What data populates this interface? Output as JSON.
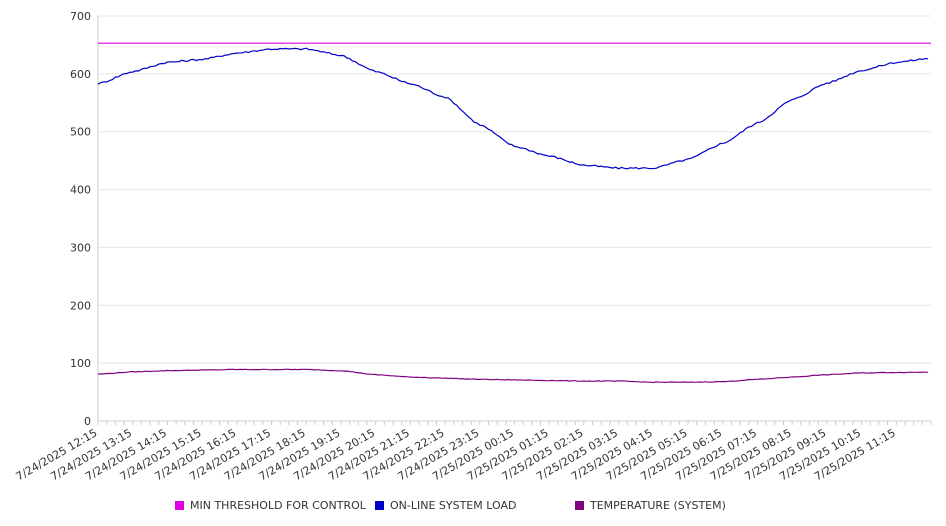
{
  "chart_data": {
    "type": "line",
    "title": "",
    "xlabel": "",
    "ylabel": "",
    "ylim": [
      0,
      700
    ],
    "yticks": [
      0,
      100,
      200,
      300,
      400,
      500,
      600,
      700
    ],
    "grid": true,
    "legend_position": "bottom",
    "categories": [
      "7/24/2025 12:15",
      "7/24/2025 13:15",
      "7/24/2025 14:15",
      "7/24/2025 15:15",
      "7/24/2025 16:15",
      "7/24/2025 17:15",
      "7/24/2025 18:15",
      "7/24/2025 19:15",
      "7/24/2025 20:15",
      "7/24/2025 21:15",
      "7/24/2025 22:15",
      "7/24/2025 23:15",
      "7/25/2025 00:15",
      "7/25/2025 01:15",
      "7/25/2025 02:15",
      "7/25/2025 03:15",
      "7/25/2025 04:15",
      "7/25/2025 05:15",
      "7/25/2025 06:15",
      "7/25/2025 07:15",
      "7/25/2025 08:15",
      "7/25/2025 09:15",
      "7/25/2025 10:15",
      "7/25/2025 11:15"
    ],
    "series": [
      {
        "name": "MIN THRESHOLD FOR CONTROL",
        "color": "#e000e0",
        "values": [
          653,
          653,
          653,
          653,
          653,
          653,
          653,
          653,
          653,
          653,
          653,
          653,
          653,
          653,
          653,
          653,
          653,
          653,
          653,
          653,
          653,
          653,
          653,
          653
        ]
      },
      {
        "name": "ON-LINE SYSTEM LOAD",
        "color": "#0000c8",
        "values": [
          583,
          604,
          620,
          625,
          636,
          643,
          643,
          632,
          604,
          583,
          560,
          512,
          475,
          458,
          442,
          437,
          437,
          452,
          480,
          515,
          555,
          584,
          606,
          620
        ]
      },
      {
        "name": "TEMPERATURE (SYSTEM)",
        "color": "#800080",
        "values": [
          81,
          85,
          87,
          88,
          89,
          89,
          89,
          87,
          80,
          76,
          74,
          72,
          71,
          70,
          69,
          69,
          67,
          67,
          68,
          72,
          76,
          80,
          83,
          84
        ]
      }
    ]
  }
}
